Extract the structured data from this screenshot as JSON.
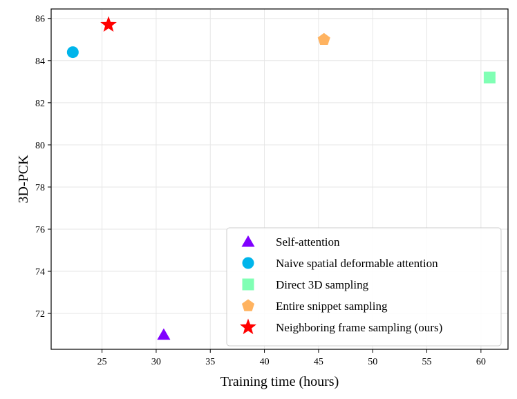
{
  "chart_data": {
    "type": "scatter",
    "title": "",
    "xlabel": "Training time (hours)",
    "ylabel": "3D-PCK",
    "xlim": [
      20.3,
      62.5
    ],
    "ylim": [
      70.3,
      86.45
    ],
    "xticks": [
      25,
      30,
      35,
      40,
      45,
      50,
      55,
      60
    ],
    "yticks": [
      72,
      74,
      76,
      78,
      80,
      82,
      84,
      86
    ],
    "grid": true,
    "legend_position": "bottom-right",
    "series": [
      {
        "name": "Self-attention",
        "marker": "triangle",
        "color": "#8000ff",
        "x": 30.7,
        "y": 71.0
      },
      {
        "name": "Naive spatial deformable attention",
        "marker": "circle",
        "color": "#00b5eb",
        "x": 22.3,
        "y": 84.4
      },
      {
        "name": "Direct 3D sampling",
        "marker": "square",
        "color": "#80ffb4",
        "x": 60.8,
        "y": 83.2
      },
      {
        "name": "Entire snippet sampling",
        "marker": "pentagon",
        "color": "#ffb360",
        "x": 45.5,
        "y": 85.0
      },
      {
        "name": "Neighboring frame sampling (ours)",
        "marker": "star",
        "color": "#ff0000",
        "x": 25.6,
        "y": 85.7
      }
    ]
  }
}
